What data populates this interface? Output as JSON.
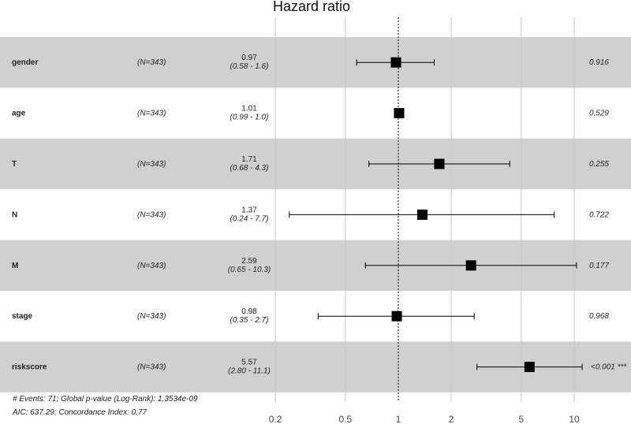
{
  "chart_data": {
    "type": "forest",
    "title": "Hazard ratio",
    "x_scale": "log",
    "xlim": [
      0.2,
      15
    ],
    "reference_line": 1,
    "x_ticks": [
      0.2,
      0.5,
      1,
      2,
      5,
      10
    ],
    "x_tick_labels": [
      "0.2",
      "0.5",
      "1",
      "2",
      "5",
      "10"
    ],
    "rows": [
      {
        "label": "gender",
        "n": "(N=343)",
        "hr": 0.97,
        "lower": 0.58,
        "upper": 1.6,
        "hr_text": "0.97",
        "ci_text": "(0.58 -  1.6)",
        "p_text": "0.916"
      },
      {
        "label": "age",
        "n": "(N=343)",
        "hr": 1.01,
        "lower": 0.99,
        "upper": 1.0,
        "hr_text": "1.01",
        "ci_text": "(0.99 -  1.0)",
        "p_text": "0.529"
      },
      {
        "label": "T",
        "n": "(N=343)",
        "hr": 1.71,
        "lower": 0.68,
        "upper": 4.3,
        "hr_text": "1.71",
        "ci_text": "(0.68 -  4.3)",
        "p_text": "0.255"
      },
      {
        "label": "N",
        "n": "(N=343)",
        "hr": 1.37,
        "lower": 0.24,
        "upper": 7.7,
        "hr_text": "1.37",
        "ci_text": "(0.24 -  7.7)",
        "p_text": "0.722"
      },
      {
        "label": "M",
        "n": "(N=343)",
        "hr": 2.59,
        "lower": 0.65,
        "upper": 10.3,
        "hr_text": "2.59",
        "ci_text": "(0.65 - 10.3)",
        "p_text": "0.177"
      },
      {
        "label": "stage",
        "n": "(N=343)",
        "hr": 0.98,
        "lower": 0.35,
        "upper": 2.7,
        "hr_text": "0.98",
        "ci_text": "(0.35 -  2.7)",
        "p_text": "0.968"
      },
      {
        "label": "riskscore",
        "n": "(N=343)",
        "hr": 5.57,
        "lower": 2.8,
        "upper": 11.1,
        "hr_text": "5.57",
        "ci_text": "(2.80 - 11.1)",
        "p_text": "<0.001 ***"
      }
    ],
    "footer": [
      "# Events: 71; Global p-value (Log-Rank): 1.3534e-09",
      "AIC: 637.29; Concordance Index: 0.77"
    ],
    "colors": {
      "stripe": "#d0d0d0",
      "grid": "#c8c8c8",
      "marker": "#000000"
    }
  }
}
